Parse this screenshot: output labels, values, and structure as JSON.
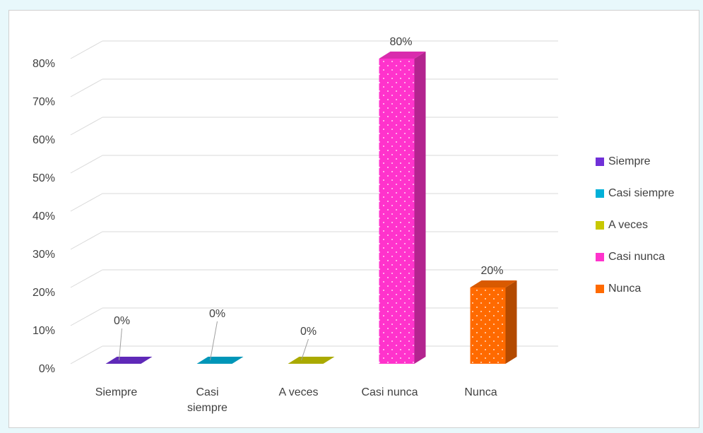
{
  "chart_data": {
    "type": "bar3d",
    "categories": [
      "Siempre",
      "Casi siempre",
      "A veces",
      "Casi nunca",
      "Nunca"
    ],
    "values": [
      0,
      0,
      0,
      80,
      20
    ],
    "value_labels": [
      "0%",
      "0%",
      "0%",
      "80%",
      "20%"
    ],
    "colors": [
      "#7030d8",
      "#00b0d8",
      "#c8c800",
      "#ff33cc",
      "#ff6a00"
    ],
    "ylim": [
      0,
      80
    ],
    "yticks": [
      {
        "value": 0,
        "label": "0%"
      },
      {
        "value": 10,
        "label": "10%"
      },
      {
        "value": 20,
        "label": "20%"
      },
      {
        "value": 30,
        "label": "30%"
      },
      {
        "value": 40,
        "label": "40%"
      },
      {
        "value": 50,
        "label": "50%"
      },
      {
        "value": 60,
        "label": "60%"
      },
      {
        "value": 70,
        "label": "70%"
      },
      {
        "value": 80,
        "label": "80%"
      }
    ],
    "grid": true,
    "legend": "right"
  }
}
